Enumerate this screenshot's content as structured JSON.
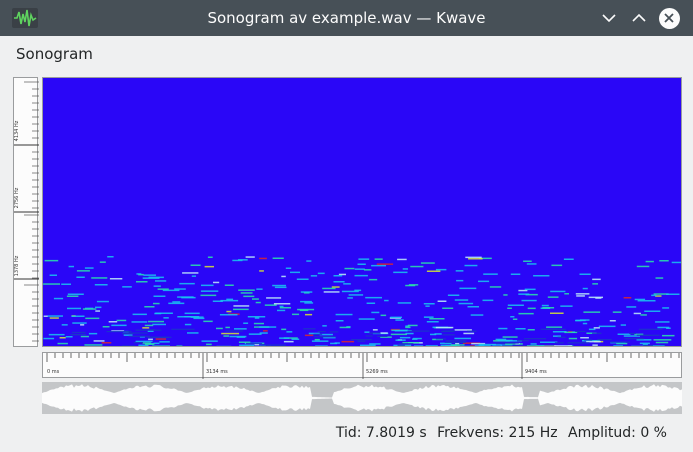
{
  "window": {
    "title": "Sonogram av example.wav — Kwave",
    "app_icon": "kwave-waveform-icon",
    "titlebar_color": "#475057"
  },
  "header_label": "Sonogram",
  "frequency_scale": {
    "labels": [
      "4134 Hz",
      "2756 Hz",
      "1378 Hz"
    ]
  },
  "time_ruler": {
    "labels": [
      "0 ms",
      "3134 ms",
      "5269 ms",
      "9404 ms"
    ]
  },
  "sonogram": {
    "background_color": "#2a06f7",
    "feature_colors": [
      "#18c8f0",
      "#28e8a8",
      "#d8e830",
      "#e02828",
      "#c0f0f8"
    ]
  },
  "status": {
    "time": "Tid: 7.8019 s",
    "frequency": "Frekvens: 215 Hz",
    "amplitude": "Amplitud: 0 %"
  }
}
